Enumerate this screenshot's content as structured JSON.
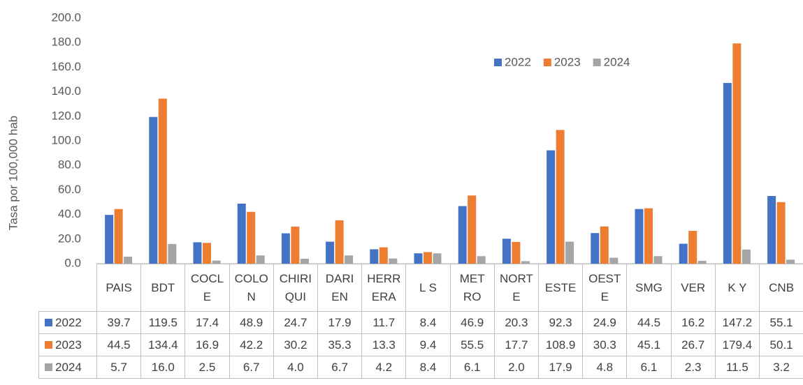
{
  "chart_data": {
    "type": "bar",
    "y_label": "Tasa  por 100,000 hab",
    "categories": [
      "PAIS",
      "BDT",
      "COCL\nE",
      "COLO\nN",
      "CHIRI\nQUI",
      "DARI\nEN",
      "HERR\nERA",
      "L S",
      "MET\nRO",
      "NORT\nE",
      "ESTE",
      "OEST\nE",
      "SMG",
      "VER",
      "K Y",
      "CNB"
    ],
    "series": [
      {
        "name": "2022",
        "color": "#4472c4",
        "values": [
          39.7,
          119.5,
          17.4,
          48.9,
          24.7,
          17.9,
          11.7,
          8.4,
          46.9,
          20.3,
          92.3,
          24.9,
          44.5,
          16.2,
          147.2,
          55.1
        ],
        "value_labels": [
          "39.7",
          "119.5",
          "17.4",
          "48.9",
          "24.7",
          "17.9",
          "11.7",
          "8.4",
          "46.9",
          "20.3",
          "92.3",
          "24.9",
          "44.5",
          "16.2",
          "147.2",
          "55.1"
        ]
      },
      {
        "name": "2023",
        "color": "#ed7d31",
        "values": [
          44.5,
          134.4,
          16.9,
          42.2,
          30.2,
          35.3,
          13.3,
          9.4,
          55.5,
          17.7,
          108.9,
          30.3,
          45.1,
          26.7,
          179.4,
          50.1
        ],
        "value_labels": [
          "44.5",
          "134.4",
          "16.9",
          "42.2",
          "30.2",
          "35.3",
          "13.3",
          "9.4",
          "55.5",
          "17.7",
          "108.9",
          "30.3",
          "45.1",
          "26.7",
          "179.4",
          "50.1"
        ]
      },
      {
        "name": "2024",
        "color": "#a5a5a5",
        "values": [
          5.7,
          16.0,
          2.5,
          6.7,
          4.0,
          6.7,
          4.2,
          8.4,
          6.1,
          2.0,
          17.9,
          4.8,
          6.1,
          2.3,
          11.5,
          3.2
        ],
        "value_labels": [
          "5.7",
          "16.0",
          "2.5",
          "6.7",
          "4.0",
          "6.7",
          "4.2",
          "8.4",
          "6.1",
          "2.0",
          "17.9",
          "4.8",
          "6.1",
          "2.3",
          "11.5",
          "3.2"
        ]
      }
    ],
    "ylim": [
      0,
      200
    ],
    "yticks": [
      {
        "value": 0,
        "label": "0.0"
      },
      {
        "value": 20,
        "label": "20.0"
      },
      {
        "value": 40,
        "label": "40.0"
      },
      {
        "value": 60,
        "label": "60.0"
      },
      {
        "value": 80,
        "label": "80.0"
      },
      {
        "value": 100,
        "label": "100.0"
      },
      {
        "value": 120,
        "label": "120.0"
      },
      {
        "value": 140,
        "label": "140.0"
      },
      {
        "value": 160,
        "label": "160.0"
      },
      {
        "value": 180,
        "label": "180.0"
      },
      {
        "value": 200,
        "label": "200.0"
      }
    ],
    "grid": false,
    "legend": "top-right"
  }
}
